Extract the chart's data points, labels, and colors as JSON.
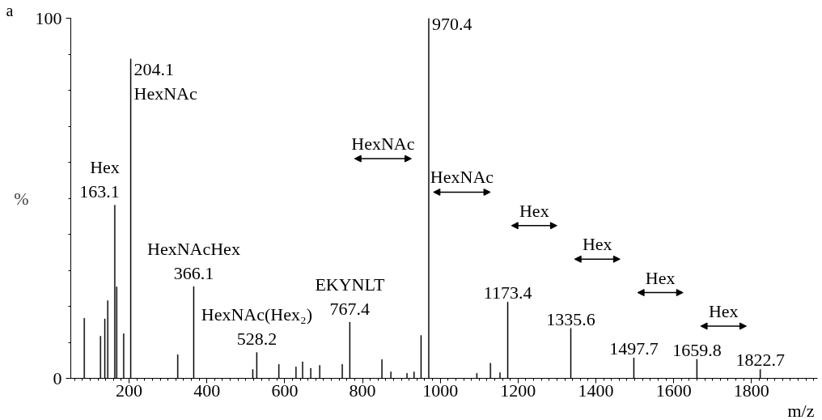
{
  "chart_data": {
    "type": "bar",
    "xlabel": "m/z",
    "ylabel": "%",
    "x": [
      84.7,
      126.4,
      137.5,
      145,
      163.1,
      168,
      186,
      204.1,
      325,
      366.1,
      518,
      528.2,
      585,
      629,
      646,
      667,
      690,
      748,
      767.4,
      850,
      873,
      914.5,
      932.6,
      950.6,
      970.4,
      1094,
      1129,
      1153.5,
      1173.4,
      1335.6,
      1497.7,
      1659.8,
      1822.7
    ],
    "series": [
      {
        "color": "#000000",
        "values": [
          16.7,
          11.7,
          16.5,
          21.6,
          48.1,
          25.4,
          12.4,
          88.7,
          6.6,
          25.5,
          2.5,
          7.2,
          3.9,
          3.2,
          4.6,
          2.8,
          3.6,
          3.9,
          15.6,
          5.2,
          1.8,
          1.4,
          1.8,
          11.9,
          100,
          1.4,
          4.2,
          1.6,
          21.2,
          13.9,
          5.7,
          5.3,
          2.5
        ]
      }
    ],
    "xlim": [
      50,
      1970
    ],
    "ylim": [
      0,
      100
    ],
    "xticks": [
      200,
      400,
      600,
      800,
      1000,
      1200,
      1400,
      1600,
      1800
    ],
    "yticks": [
      0,
      100
    ],
    "annotations": [
      "a",
      {
        "text": "Hex\n163.1",
        "x": 163.1,
        "y": 48.1
      },
      {
        "text": "204.1\nHexNAc",
        "x": 204.1,
        "y": 88.7
      },
      {
        "text": "HexNAcHex\n366.1",
        "x": 366.1,
        "y": 25.5
      },
      {
        "text": "HexNAc(Hex₂)\n528.2",
        "x": 528.2,
        "y": 7.2
      },
      {
        "text": "EKYNLT\n767.4",
        "x": 767.4,
        "y": 15.6
      },
      {
        "text": "970.4",
        "x": 970.4,
        "y": 100
      },
      {
        "text": "1173.4",
        "x": 1173.4,
        "y": 21.2
      },
      {
        "text": "1335.6",
        "x": 1335.6,
        "y": 13.9
      },
      {
        "text": "1497.7",
        "x": 1497.7,
        "y": 5.7
      },
      {
        "text": "1659.8",
        "x": 1659.8,
        "y": 5.3
      },
      {
        "text": "1822.7",
        "x": 1822.7,
        "y": 2.5
      },
      "HexNAc",
      "HexNAc",
      "Hex",
      "Hex",
      "Hex",
      "Hex"
    ]
  }
}
